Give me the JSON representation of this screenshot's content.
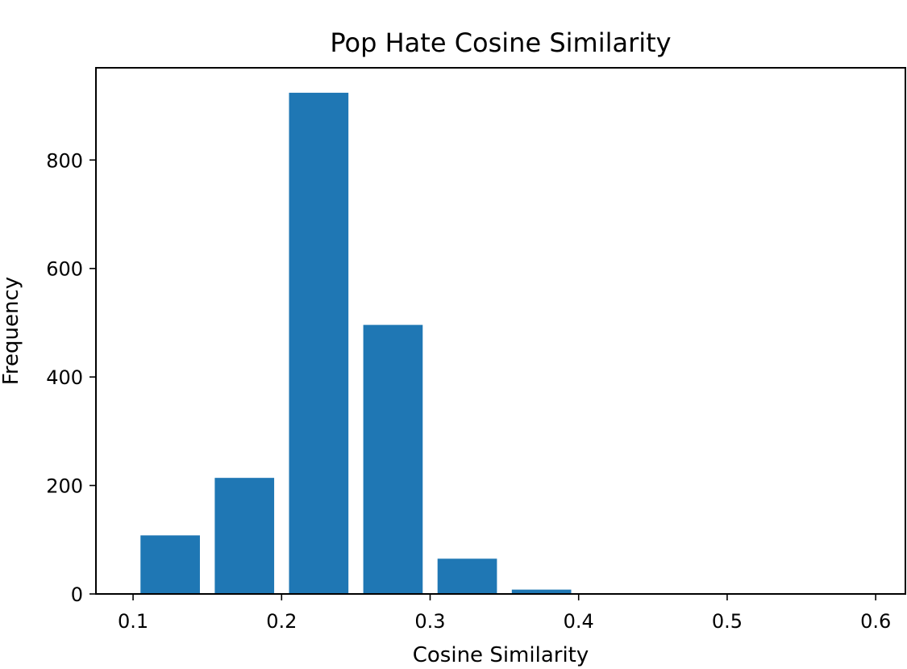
{
  "chart_data": {
    "type": "bar",
    "title": "Pop Hate Cosine Similarity",
    "xlabel": "Cosine Similarity",
    "ylabel": "Frequency",
    "xlim": [
      0.075,
      0.62
    ],
    "ylim": [
      0,
      970
    ],
    "x_ticks": [
      0.1,
      0.2,
      0.3,
      0.4,
      0.5,
      0.6
    ],
    "x_tick_labels": [
      "0.1",
      "0.2",
      "0.3",
      "0.4",
      "0.5",
      "0.6"
    ],
    "y_ticks": [
      0,
      200,
      400,
      600,
      800
    ],
    "y_tick_labels": [
      "0",
      "200",
      "400",
      "600",
      "800"
    ],
    "bar_width": 0.04,
    "x": [
      0.125,
      0.175,
      0.225,
      0.275,
      0.325,
      0.375
    ],
    "values": [
      108,
      214,
      924,
      496,
      65,
      8
    ],
    "grid": false,
    "legend": "none",
    "bar_color": "#1f77b4"
  }
}
